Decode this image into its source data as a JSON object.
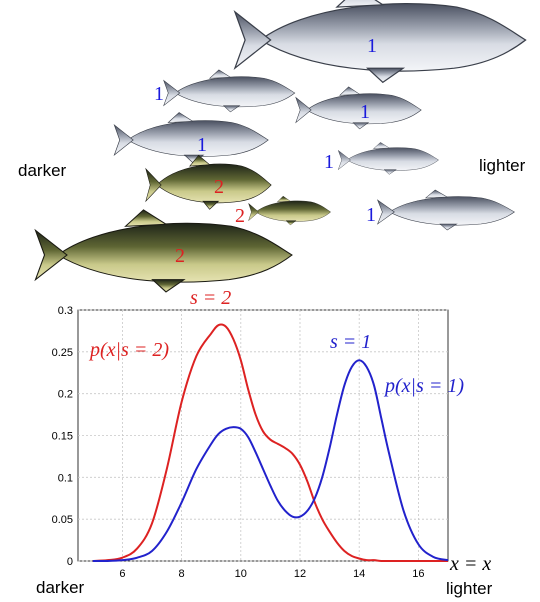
{
  "labels": {
    "darker_top": "darker",
    "lighter_top": "lighter",
    "darker_bottom": "darker",
    "lighter_bottom": "lighter",
    "s2_title": "s = 2",
    "s1_title": "s = 1",
    "p_s2": "p(x|s = 2)",
    "p_s1": "p(x|s = 1)",
    "x_axis": "x = x"
  },
  "fish": [
    {
      "class": "1",
      "color": "#1a1adc"
    },
    {
      "class": "1",
      "color": "#1a1adc"
    },
    {
      "class": "1",
      "color": "#1a1adc"
    },
    {
      "class": "1",
      "color": "#1a1adc"
    },
    {
      "class": "1",
      "color": "#1a1adc"
    },
    {
      "class": "1",
      "color": "#1a1adc"
    },
    {
      "class": "2",
      "color": "#dd2222"
    },
    {
      "class": "2",
      "color": "#dd2222"
    },
    {
      "class": "2",
      "color": "#dd2222"
    }
  ],
  "chart_data": {
    "type": "line",
    "xlim": [
      4.5,
      17
    ],
    "ylim": [
      0,
      0.3
    ],
    "xticks": [
      "6",
      "8",
      "10",
      "12",
      "14",
      "16"
    ],
    "yticks": [
      "0",
      "0.05",
      "0.1",
      "0.15",
      "0.2",
      "0.25",
      "0.3"
    ],
    "grid": true,
    "x": [
      5,
      5.5,
      6,
      6.5,
      7,
      7.5,
      8,
      8.5,
      9,
      9.25,
      9.5,
      9.75,
      10,
      10.25,
      10.5,
      10.75,
      11,
      11.25,
      11.5,
      11.75,
      12,
      12.25,
      12.5,
      12.75,
      13,
      13.25,
      13.5,
      13.75,
      14,
      14.25,
      14.5,
      14.75,
      15,
      15.5,
      16,
      16.5,
      17
    ],
    "series": [
      {
        "name": "p(x|s = 2)",
        "color": "#dd2222",
        "values": [
          0,
          0.001,
          0.004,
          0.015,
          0.045,
          0.11,
          0.19,
          0.245,
          0.272,
          0.282,
          0.28,
          0.265,
          0.24,
          0.205,
          0.175,
          0.155,
          0.145,
          0.14,
          0.135,
          0.128,
          0.115,
          0.095,
          0.07,
          0.05,
          0.035,
          0.022,
          0.012,
          0.006,
          0.003,
          0.001,
          0.001,
          0,
          0,
          0,
          0,
          0,
          0
        ]
      },
      {
        "name": "p(x|s = 1)",
        "color": "#2222cc",
        "values": [
          0,
          0,
          0.001,
          0.004,
          0.012,
          0.035,
          0.07,
          0.11,
          0.14,
          0.152,
          0.158,
          0.16,
          0.158,
          0.148,
          0.13,
          0.11,
          0.09,
          0.072,
          0.06,
          0.053,
          0.053,
          0.06,
          0.075,
          0.1,
          0.135,
          0.175,
          0.21,
          0.232,
          0.24,
          0.232,
          0.21,
          0.17,
          0.13,
          0.06,
          0.02,
          0.005,
          0.001
        ]
      }
    ]
  }
}
